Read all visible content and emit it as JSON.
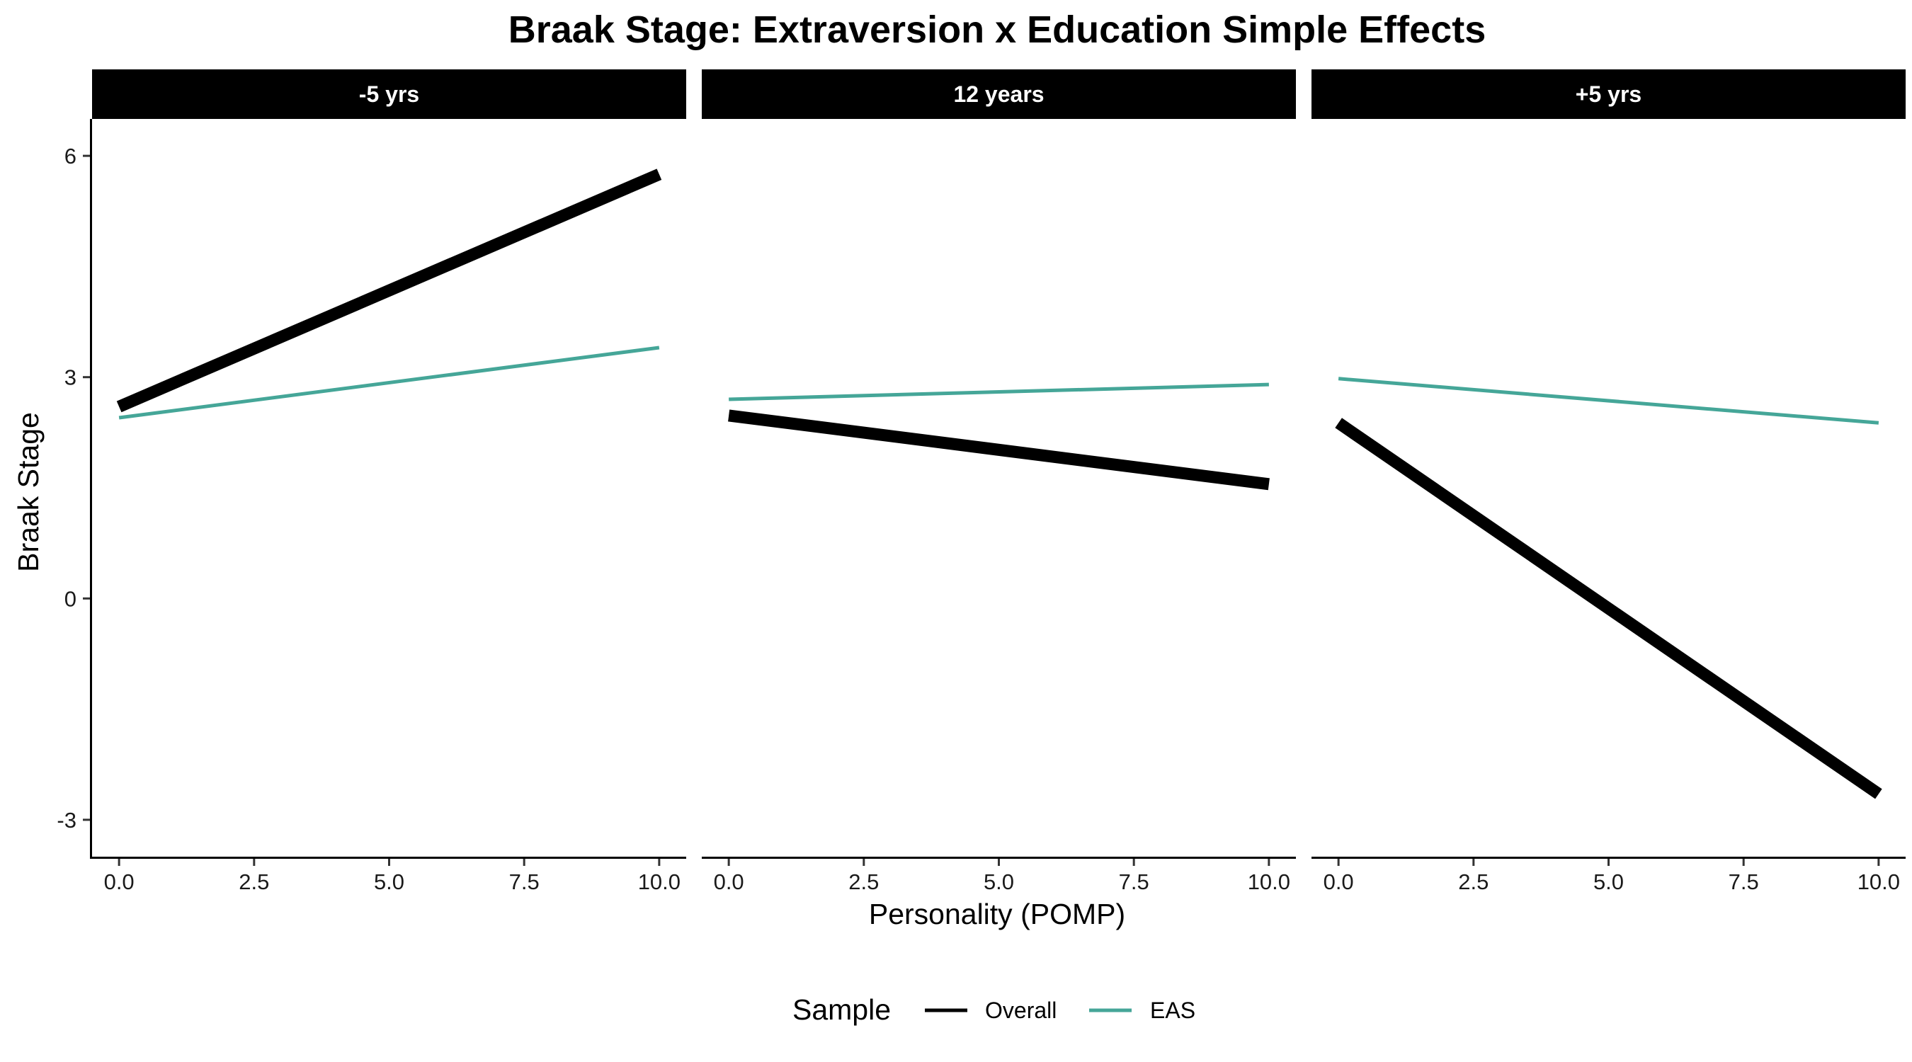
{
  "chart_data": {
    "type": "line",
    "title": "Braak Stage: Extraversion x Education Simple Effects",
    "xlabel": "Personality (POMP)",
    "ylabel": "Braak Stage",
    "xlim": [
      -0.5,
      10.5
    ],
    "ylim": [
      -3.5,
      6.5
    ],
    "x_ticks": [
      0,
      2.5,
      5,
      7.5,
      10
    ],
    "x_tick_labels": [
      "0.0",
      "2.5",
      "5.0",
      "7.5",
      "10.0"
    ],
    "y_ticks": [
      -3,
      0,
      3,
      6
    ],
    "y_tick_labels": [
      "-3",
      "0",
      "3",
      "6"
    ],
    "grid": false,
    "facets": [
      {
        "label": "-5 yrs",
        "series": [
          {
            "name": "Overall",
            "x": [
              0,
              10
            ],
            "y": [
              2.6,
              5.75
            ]
          },
          {
            "name": "EAS",
            "x": [
              0,
              10
            ],
            "y": [
              2.45,
              3.4
            ]
          }
        ]
      },
      {
        "label": "12 years",
        "series": [
          {
            "name": "Overall",
            "x": [
              0,
              10
            ],
            "y": [
              2.48,
              1.55
            ]
          },
          {
            "name": "EAS",
            "x": [
              0,
              10
            ],
            "y": [
              2.7,
              2.9
            ]
          }
        ]
      },
      {
        "label": "+5 yrs",
        "series": [
          {
            "name": "Overall",
            "x": [
              0,
              10
            ],
            "y": [
              2.38,
              -2.65
            ]
          },
          {
            "name": "EAS",
            "x": [
              0,
              10
            ],
            "y": [
              2.98,
              2.38
            ]
          }
        ]
      }
    ],
    "legend": {
      "title": "Sample",
      "position": "bottom",
      "entries": [
        {
          "name": "Overall",
          "color": "#000000"
        },
        {
          "name": "EAS",
          "color": "#45A698"
        }
      ]
    },
    "colors": {
      "Overall": "#000000",
      "EAS": "#45A698"
    }
  }
}
